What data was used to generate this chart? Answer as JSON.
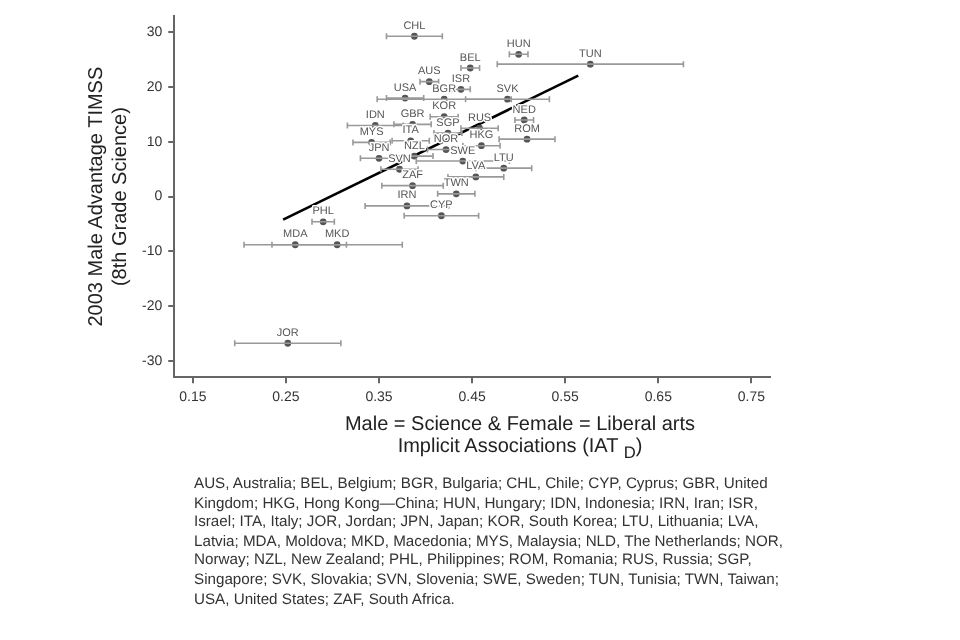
{
  "chart_data": {
    "type": "scatter",
    "xlabel": "Male = Science & Female = Liberal arts\nImplicit Associations (IAT $_{D}$)",
    "ylabel": "2003 Male Advantage TIMSS\n(8th Grade Science)",
    "xlim": [
      0.13,
      0.77
    ],
    "ylim": [
      -33,
      33
    ],
    "xticks": [
      0.15,
      0.25,
      0.35,
      0.45,
      0.55,
      0.65,
      0.75
    ],
    "yticks": [
      -30,
      -20,
      -10,
      0,
      10,
      20,
      30
    ],
    "grid": false,
    "legend": false,
    "series": [
      {
        "color": "#555555",
        "marker": "circle",
        "x": [
          0.388,
          0.5,
          0.448,
          0.577,
          0.404,
          0.438,
          0.378,
          0.42,
          0.488,
          0.506,
          0.346,
          0.386,
          0.42,
          0.458,
          0.509,
          0.342,
          0.384,
          0.35,
          0.422,
          0.46,
          0.424,
          0.388,
          0.372,
          0.44,
          0.484,
          0.454,
          0.386,
          0.433,
          0.38,
          0.417,
          0.29,
          0.26,
          0.305,
          0.252
        ],
        "values": [
          29.3,
          26,
          23.5,
          24.2,
          21,
          19.6,
          18,
          17.8,
          17.8,
          14,
          13,
          13.2,
          14.6,
          12.5,
          10.5,
          9.9,
          10.2,
          7,
          8.6,
          9.3,
          11.6,
          7.4,
          5,
          6.5,
          5.2,
          3.6,
          2,
          0.5,
          -1.7,
          -3.5,
          -4.6,
          -8.8,
          -8.8,
          -26.8
        ],
        "value_labels": [
          "CHL",
          "HUN",
          "BEL",
          "TUN",
          "AUS",
          "ISR",
          "USA",
          "BGR",
          "SVK",
          "NED",
          "IDN",
          "GBR",
          "KOR",
          "RUS",
          "ROM",
          "MYS",
          "ITA",
          "JPN",
          "NOR",
          "HKG",
          "SGP",
          "NZL",
          "SVN",
          "SWE",
          "LTU",
          "LVA",
          "ZAF",
          "TWN",
          "IRN",
          "CYP",
          "PHL",
          "MDA",
          "MKD",
          "JOR"
        ],
        "xerrors": [
          0.03,
          0.01,
          0.01,
          0.1,
          0.01,
          0.01,
          0.02,
          0.072,
          0.045,
          0.01,
          0.03,
          0.02,
          0.015,
          0.02,
          0.03,
          0.02,
          0.02,
          0.02,
          0.02,
          0.02,
          0.015,
          0.02,
          0.02,
          0.05,
          0.03,
          0.03,
          0.033,
          0.02,
          0.045,
          0.04,
          0.012,
          0.055,
          0.07,
          0.057
        ]
      },
      {
        "type": "line",
        "color": "#000000",
        "x": [
          0.247,
          0.564
        ],
        "values": [
          -4.2,
          22.1
        ]
      }
    ],
    "annotations": [
      "AUS, Australia; BEL, Belgium; BGR, Bulgaria; CHL, Chile; CYP, Cyprus; GBR, United Kingdom; HKG, Hong Kong—China; HUN, Hungary; IDN, Indonesia; IRN, Iran; ISR, Israel; ITA, Italy; JOR, Jordan; JPN, Japan; KOR, South Korea; LTU, Lithuania; LVA, Latvia; MDA, Moldova; MKD, Macedonia; MYS, Malaysia; NLD, The Netherlands; NOR, Norway; NZL, New Zealand; PHL, Philippines; ROM, Romania; RUS, Russia; SGP, Singapore; SVK, Slovakia; SVN, Slovenia; SWE, Sweden; TUN, Tunisia; TWN, Taiwan; USA, United States; ZAF, South Africa."
    ]
  }
}
